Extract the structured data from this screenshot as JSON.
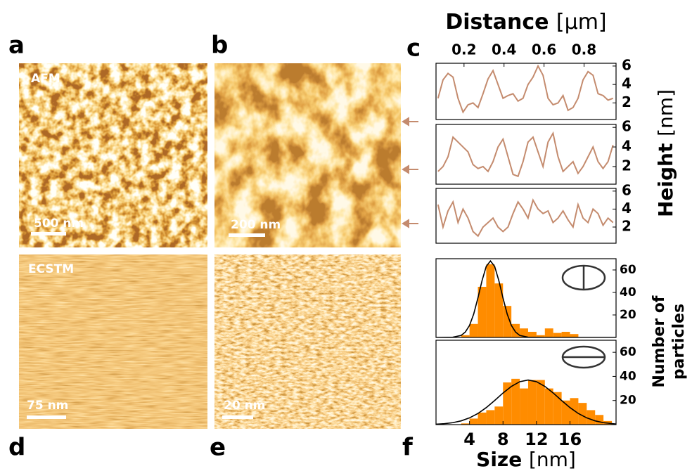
{
  "panels": [
    "a",
    "b",
    "c",
    "d",
    "e",
    "f"
  ],
  "images": [
    {
      "label": "AFM",
      "scale_bar": "500 nm"
    },
    {
      "scale_bar": "200 nm"
    },
    {
      "label": "ECSTM",
      "scale_bar": "75 nm"
    },
    {
      "scale_bar": "20 nm"
    }
  ],
  "chart_data": [
    {
      "type": "line",
      "xlabel": "Distance",
      "xunit": "[µm]",
      "ylabel": "Height",
      "yunit": "[nm]",
      "x": [
        0.07,
        0.095,
        0.12,
        0.145,
        0.17,
        0.195,
        0.22,
        0.245,
        0.27,
        0.295,
        0.32,
        0.345,
        0.37,
        0.395,
        0.42,
        0.445,
        0.47,
        0.495,
        0.52,
        0.545,
        0.57,
        0.595,
        0.62,
        0.645,
        0.67,
        0.695,
        0.72,
        0.745,
        0.77,
        0.795,
        0.82,
        0.845,
        0.87,
        0.895,
        0.92,
        0.945
      ],
      "series": [
        {
          "color": "#c48b6e",
          "values": [
            2.5,
            4.5,
            5.2,
            4.8,
            2.5,
            1.0,
            1.8,
            2.0,
            1.5,
            3.0,
            4.6,
            5.5,
            4.0,
            2.5,
            2.8,
            3.0,
            2.2,
            2.5,
            4.0,
            4.8,
            6.0,
            5.0,
            2.5,
            1.8,
            2.0,
            2.8,
            1.2,
            1.5,
            2.5,
            4.5,
            5.4,
            5.0,
            3.0,
            2.8,
            2.3,
            2.5
          ]
        }
      ],
      "xlim": [
        0.06,
        0.96
      ],
      "ylim": [
        0.2,
        6.3
      ],
      "xticks": [
        0.2,
        0.4,
        0.6,
        0.8
      ],
      "yticks": [
        2,
        4,
        6
      ]
    },
    {
      "type": "line",
      "x": [
        0.07,
        0.095,
        0.12,
        0.145,
        0.17,
        0.195,
        0.22,
        0.245,
        0.27,
        0.295,
        0.32,
        0.345,
        0.37,
        0.395,
        0.42,
        0.445,
        0.47,
        0.495,
        0.52,
        0.545,
        0.57,
        0.595,
        0.62,
        0.645,
        0.67,
        0.695,
        0.72,
        0.745,
        0.77,
        0.795,
        0.82,
        0.845,
        0.87,
        0.895,
        0.92,
        0.945
      ],
      "series": [
        {
          "color": "#c48b6e",
          "values": [
            1.5,
            2.0,
            3.0,
            5.0,
            4.5,
            4.0,
            3.5,
            2.2,
            1.8,
            2.0,
            1.5,
            2.5,
            4.0,
            4.8,
            3.0,
            1.2,
            1.0,
            2.5,
            4.5,
            5.0,
            3.5,
            2.0,
            4.5,
            5.4,
            3.0,
            1.5,
            2.0,
            2.5,
            1.3,
            2.0,
            3.0,
            4.0,
            2.5,
            1.8,
            2.5,
            4.2
          ]
        }
      ],
      "xlim": [
        0.06,
        0.96
      ],
      "ylim": [
        0.2,
        6.3
      ],
      "yticks": [
        2,
        4,
        6
      ]
    },
    {
      "type": "line",
      "x": [
        0.07,
        0.095,
        0.12,
        0.145,
        0.17,
        0.195,
        0.22,
        0.245,
        0.27,
        0.295,
        0.32,
        0.345,
        0.37,
        0.395,
        0.42,
        0.445,
        0.47,
        0.495,
        0.52,
        0.545,
        0.57,
        0.595,
        0.62,
        0.645,
        0.67,
        0.695,
        0.72,
        0.745,
        0.77,
        0.795,
        0.82,
        0.845,
        0.87,
        0.895,
        0.92,
        0.945
      ],
      "series": [
        {
          "color": "#c48b6e",
          "values": [
            4.5,
            2.0,
            3.8,
            4.8,
            2.5,
            4.0,
            3.0,
            1.5,
            1.0,
            2.0,
            2.5,
            3.0,
            2.0,
            1.5,
            2.0,
            3.5,
            4.8,
            4.0,
            3.0,
            5.0,
            4.0,
            3.5,
            3.8,
            2.5,
            3.0,
            3.8,
            2.8,
            2.0,
            4.5,
            3.0,
            2.5,
            4.0,
            3.5,
            2.2,
            3.0,
            2.5
          ]
        }
      ],
      "xlim": [
        0.06,
        0.96
      ],
      "ylim": [
        0.2,
        6.3
      ],
      "yticks": [
        2,
        4,
        6
      ]
    },
    {
      "type": "histogram",
      "ylabel": [
        "Number of",
        "particles"
      ],
      "bins": [
        0,
        1,
        2,
        3,
        4,
        5,
        6,
        7,
        8,
        9,
        10,
        11,
        12,
        13,
        14,
        15,
        16,
        17,
        18,
        19,
        20,
        21
      ],
      "counts": [
        0,
        0,
        0,
        2,
        12,
        45,
        65,
        48,
        28,
        12,
        8,
        5,
        2,
        8,
        4,
        5,
        3,
        0,
        0,
        0,
        0
      ],
      "color": "#ff8c00",
      "fit": {
        "color": "#000000",
        "x": [
          0,
          2,
          3,
          3.5,
          4,
          4.5,
          5,
          5.5,
          6,
          6.5,
          7,
          7.5,
          8,
          8.5,
          9,
          9.5,
          10,
          11,
          13,
          21.5
        ],
        "values": [
          0,
          0.2,
          1.8,
          4.8,
          10.7,
          20.8,
          35,
          50.6,
          63.2,
          68,
          63.2,
          50.6,
          35,
          20.8,
          10.7,
          4.8,
          1.8,
          0.2,
          0,
          0
        ]
      },
      "xlim": [
        0,
        21.5
      ],
      "ylim": [
        0,
        70
      ],
      "yticks": [
        20,
        40,
        60
      ]
    },
    {
      "type": "histogram",
      "xlabel": "Size",
      "xunit": "[nm]",
      "bins": [
        0,
        1,
        2,
        3,
        4,
        5,
        6,
        7,
        8,
        9,
        10,
        11,
        12,
        13,
        14,
        15,
        16,
        17,
        18,
        19,
        20,
        21
      ],
      "counts": [
        0,
        0,
        0,
        1,
        5,
        10,
        12,
        15,
        35,
        38,
        30,
        37,
        37,
        30,
        27,
        20,
        22,
        18,
        12,
        8,
        3
      ],
      "color": "#ff8c00",
      "fit": {
        "color": "#000000",
        "x": [
          0,
          1,
          2,
          3,
          4,
          5,
          6,
          7,
          8,
          9,
          10,
          11,
          12,
          13,
          14,
          15,
          16,
          17,
          18,
          19,
          20,
          21.5
        ],
        "values": [
          0.3,
          0.8,
          1.6,
          3.1,
          5.6,
          9.2,
          14.1,
          20,
          26.2,
          31.7,
          35.6,
          37,
          35.6,
          31.7,
          26.2,
          20,
          14.1,
          9.2,
          5.6,
          3.1,
          1.6,
          0.5
        ]
      },
      "xlim": [
        0,
        21.5
      ],
      "ylim": [
        0,
        70
      ],
      "xticks": [
        4,
        8,
        12,
        16
      ],
      "yticks": [
        20,
        40,
        60
      ]
    }
  ]
}
